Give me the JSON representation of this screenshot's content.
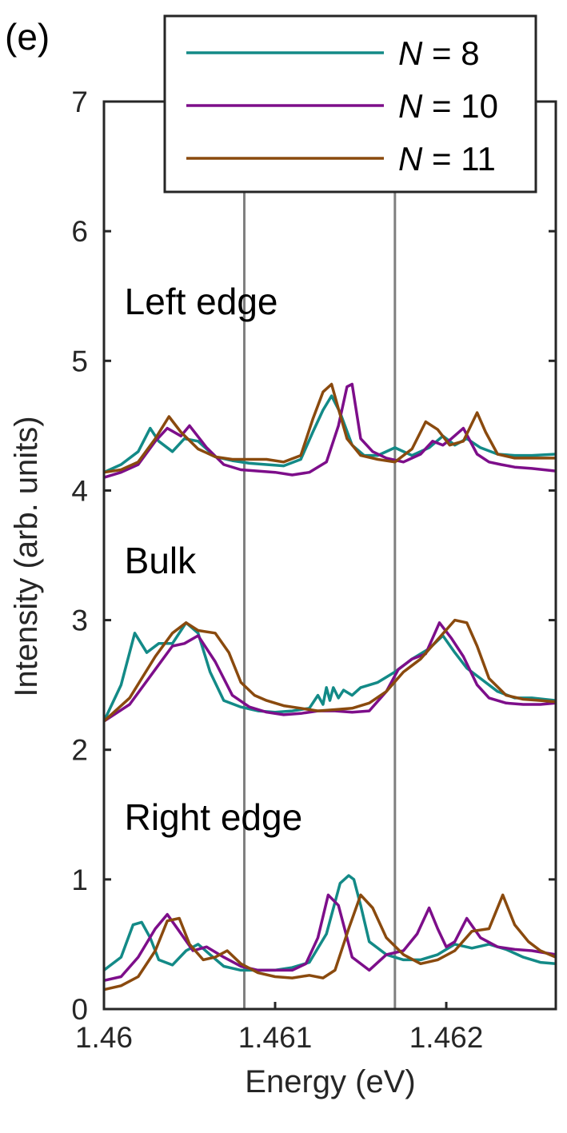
{
  "chart_data": {
    "type": "line",
    "panel_label": "(e)",
    "xlabel": "Energy (eV)",
    "ylabel": "Intensity (arb. units)",
    "xlim": [
      1.46,
      1.46264
    ],
    "ylim": [
      0,
      7
    ],
    "xticks": [
      1.46,
      1.461,
      1.462
    ],
    "xtick_labels": [
      "1.46",
      "1.461",
      "1.462"
    ],
    "yticks": [
      0,
      1,
      2,
      3,
      4,
      5,
      6,
      7
    ],
    "ytick_labels": [
      "0",
      "1",
      "2",
      "3",
      "4",
      "5",
      "6",
      "7"
    ],
    "grid": false,
    "legend_position": "top-right",
    "vertical_lines": [
      1.46082,
      1.4617
    ],
    "vertical_line_color": "#7f7f7f",
    "annotations": [
      {
        "text": "Left edge",
        "x": 1.46012,
        "y": 5.36
      },
      {
        "text": "Bulk",
        "x": 1.46012,
        "y": 3.36
      },
      {
        "text": "Right edge",
        "x": 1.46012,
        "y": 1.38
      }
    ],
    "series": [
      {
        "name": "N = 8",
        "label_var": "N",
        "label_rest": " = 8",
        "color": "#138A87",
        "curves": [
          {
            "x": [
              1.46,
              1.4601,
              1.4602,
              1.46027,
              1.46032,
              1.4604,
              1.46047,
              1.46055,
              1.46065,
              1.46075,
              1.46085,
              1.46095,
              1.46105,
              1.46115,
              1.46122,
              1.46128,
              1.46133,
              1.46138,
              1.46145,
              1.46152,
              1.4616,
              1.4617,
              1.4618,
              1.4619,
              1.46198,
              1.46205,
              1.46212,
              1.4622,
              1.4623,
              1.4624,
              1.4625,
              1.46264
            ],
            "y": [
              4.14,
              4.2,
              4.3,
              4.48,
              4.38,
              4.3,
              4.4,
              4.38,
              4.26,
              4.23,
              4.21,
              4.2,
              4.19,
              4.24,
              4.45,
              4.62,
              4.73,
              4.6,
              4.35,
              4.27,
              4.27,
              4.33,
              4.27,
              4.33,
              4.42,
              4.35,
              4.4,
              4.33,
              4.28,
              4.27,
              4.27,
              4.28
            ]
          },
          {
            "x": [
              1.46,
              1.4601,
              1.46018,
              1.46025,
              1.46032,
              1.4604,
              1.46048,
              1.46055,
              1.46062,
              1.4607,
              1.4608,
              1.4609,
              1.461,
              1.4611,
              1.4612,
              1.46125,
              1.46128,
              1.4613,
              1.46132,
              1.46134,
              1.46137,
              1.4614,
              1.46145,
              1.4615,
              1.4616,
              1.4617,
              1.4618,
              1.4619,
              1.46198,
              1.46205,
              1.46212,
              1.4622,
              1.4623,
              1.4624,
              1.4625,
              1.46264
            ],
            "y": [
              2.22,
              2.5,
              2.9,
              2.75,
              2.82,
              2.82,
              2.98,
              2.9,
              2.6,
              2.38,
              2.33,
              2.3,
              2.29,
              2.3,
              2.32,
              2.42,
              2.35,
              2.48,
              2.38,
              2.48,
              2.4,
              2.46,
              2.42,
              2.48,
              2.52,
              2.6,
              2.7,
              2.78,
              2.88,
              2.75,
              2.63,
              2.55,
              2.45,
              2.4,
              2.4,
              2.38
            ]
          },
          {
            "x": [
              1.46,
              1.4601,
              1.46017,
              1.46022,
              1.46027,
              1.46032,
              1.4604,
              1.46048,
              1.46055,
              1.46062,
              1.4607,
              1.4608,
              1.4609,
              1.461,
              1.4611,
              1.4612,
              1.4613,
              1.46138,
              1.46143,
              1.46146,
              1.4615,
              1.46155,
              1.46165,
              1.46175,
              1.46185,
              1.46195,
              1.46205,
              1.46215,
              1.46225,
              1.46235,
              1.46245,
              1.46255,
              1.46264
            ],
            "y": [
              0.3,
              0.4,
              0.65,
              0.67,
              0.55,
              0.38,
              0.34,
              0.45,
              0.5,
              0.42,
              0.33,
              0.3,
              0.3,
              0.3,
              0.32,
              0.36,
              0.58,
              0.97,
              1.03,
              1.0,
              0.8,
              0.52,
              0.42,
              0.38,
              0.38,
              0.42,
              0.5,
              0.47,
              0.5,
              0.46,
              0.4,
              0.36,
              0.35
            ]
          }
        ]
      },
      {
        "name": "N = 10",
        "label_var": "N",
        "label_rest": " = 10",
        "color": "#7D0E8A",
        "curves": [
          {
            "x": [
              1.46,
              1.4601,
              1.4602,
              1.4603,
              1.46037,
              1.46045,
              1.4605,
              1.4606,
              1.4607,
              1.4608,
              1.4609,
              1.461,
              1.4611,
              1.4612,
              1.4613,
              1.46137,
              1.46142,
              1.46145,
              1.4615,
              1.46157,
              1.46165,
              1.46175,
              1.46185,
              1.46192,
              1.46198,
              1.46203,
              1.4621,
              1.46218,
              1.46225,
              1.46232,
              1.4624,
              1.4625,
              1.46264
            ],
            "y": [
              4.1,
              4.14,
              4.2,
              4.38,
              4.48,
              4.42,
              4.5,
              4.33,
              4.2,
              4.16,
              4.15,
              4.14,
              4.12,
              4.14,
              4.22,
              4.5,
              4.8,
              4.82,
              4.4,
              4.3,
              4.25,
              4.22,
              4.28,
              4.38,
              4.35,
              4.4,
              4.48,
              4.28,
              4.22,
              4.2,
              4.18,
              4.17,
              4.15
            ]
          },
          {
            "x": [
              1.46,
              1.46015,
              1.4603,
              1.4604,
              1.46047,
              1.46055,
              1.46065,
              1.46075,
              1.46085,
              1.46095,
              1.46105,
              1.46115,
              1.46125,
              1.46135,
              1.46145,
              1.46155,
              1.46165,
              1.46172,
              1.4618,
              1.46188,
              1.46196,
              1.46203,
              1.4621,
              1.46218,
              1.46225,
              1.46235,
              1.46245,
              1.46255,
              1.46264
            ],
            "y": [
              2.22,
              2.35,
              2.62,
              2.8,
              2.82,
              2.88,
              2.68,
              2.42,
              2.33,
              2.29,
              2.27,
              2.28,
              2.3,
              2.3,
              2.29,
              2.3,
              2.45,
              2.62,
              2.7,
              2.74,
              2.98,
              2.86,
              2.72,
              2.5,
              2.4,
              2.36,
              2.35,
              2.35,
              2.36
            ]
          },
          {
            "x": [
              1.46,
              1.4601,
              1.4602,
              1.4603,
              1.46037,
              1.46044,
              1.46052,
              1.4606,
              1.4607,
              1.4608,
              1.4609,
              1.461,
              1.4611,
              1.46118,
              1.46125,
              1.46131,
              1.46137,
              1.46145,
              1.46155,
              1.46165,
              1.46175,
              1.46183,
              1.4619,
              1.46195,
              1.462,
              1.46205,
              1.46212,
              1.4622,
              1.4623,
              1.4624,
              1.4625,
              1.46264
            ],
            "y": [
              0.22,
              0.25,
              0.4,
              0.62,
              0.73,
              0.6,
              0.45,
              0.48,
              0.4,
              0.33,
              0.3,
              0.3,
              0.3,
              0.35,
              0.55,
              0.88,
              0.8,
              0.4,
              0.3,
              0.42,
              0.45,
              0.58,
              0.78,
              0.62,
              0.48,
              0.52,
              0.7,
              0.55,
              0.48,
              0.46,
              0.45,
              0.42
            ]
          }
        ]
      },
      {
        "name": "N = 11",
        "label_var": "N",
        "label_rest": " = 11",
        "color": "#8A4A0E",
        "curves": [
          {
            "x": [
              1.46,
              1.4601,
              1.4602,
              1.4603,
              1.46038,
              1.46045,
              1.46055,
              1.46065,
              1.46075,
              1.46085,
              1.46095,
              1.46105,
              1.46115,
              1.46122,
              1.46128,
              1.46133,
              1.46137,
              1.46142,
              1.4615,
              1.4616,
              1.4617,
              1.4618,
              1.46188,
              1.46195,
              1.46202,
              1.4621,
              1.46218,
              1.46223,
              1.4623,
              1.4624,
              1.4625,
              1.46264
            ],
            "y": [
              4.14,
              4.16,
              4.22,
              4.4,
              4.57,
              4.45,
              4.32,
              4.26,
              4.24,
              4.24,
              4.24,
              4.22,
              4.27,
              4.55,
              4.76,
              4.82,
              4.63,
              4.4,
              4.27,
              4.24,
              4.22,
              4.32,
              4.53,
              4.47,
              4.35,
              4.38,
              4.6,
              4.45,
              4.28,
              4.25,
              4.25,
              4.25
            ]
          },
          {
            "x": [
              1.46,
              1.46015,
              1.4603,
              1.4604,
              1.46048,
              1.46055,
              1.46065,
              1.46073,
              1.4608,
              1.46088,
              1.46095,
              1.46105,
              1.46115,
              1.46125,
              1.46135,
              1.46145,
              1.46155,
              1.46165,
              1.46175,
              1.46185,
              1.46195,
              1.46205,
              1.46212,
              1.46218,
              1.46225,
              1.46235,
              1.46245,
              1.46255,
              1.46264
            ],
            "y": [
              2.22,
              2.4,
              2.72,
              2.9,
              2.98,
              2.92,
              2.9,
              2.75,
              2.52,
              2.42,
              2.38,
              2.34,
              2.32,
              2.3,
              2.31,
              2.32,
              2.36,
              2.45,
              2.6,
              2.7,
              2.85,
              3.0,
              2.98,
              2.8,
              2.55,
              2.42,
              2.39,
              2.38,
              2.37
            ]
          },
          {
            "x": [
              1.46,
              1.4601,
              1.4602,
              1.4603,
              1.46037,
              1.46044,
              1.4605,
              1.46058,
              1.46065,
              1.46072,
              1.4608,
              1.4609,
              1.461,
              1.4611,
              1.4612,
              1.46128,
              1.46135,
              1.46143,
              1.4615,
              1.46157,
              1.46165,
              1.46175,
              1.46185,
              1.46195,
              1.46205,
              1.46215,
              1.46225,
              1.46233,
              1.4624,
              1.46248,
              1.46255,
              1.46264
            ],
            "y": [
              0.15,
              0.18,
              0.25,
              0.45,
              0.68,
              0.7,
              0.5,
              0.38,
              0.4,
              0.45,
              0.35,
              0.28,
              0.25,
              0.24,
              0.26,
              0.24,
              0.3,
              0.62,
              0.88,
              0.78,
              0.55,
              0.42,
              0.35,
              0.38,
              0.45,
              0.6,
              0.62,
              0.88,
              0.65,
              0.52,
              0.45,
              0.4
            ]
          }
        ]
      }
    ]
  }
}
